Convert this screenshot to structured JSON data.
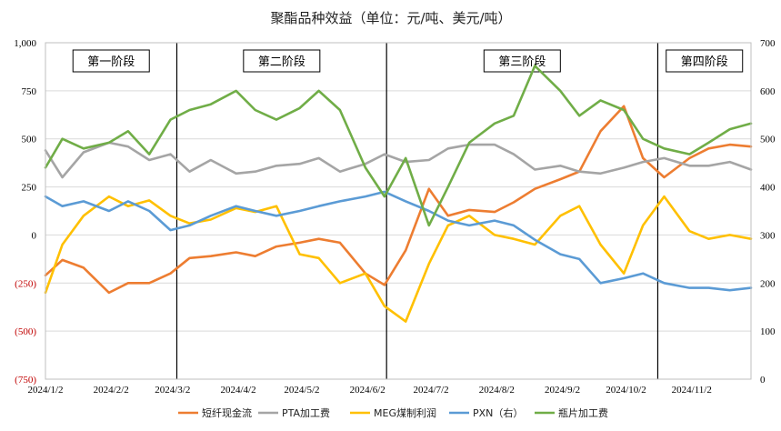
{
  "chart_data": {
    "type": "line",
    "title": "聚酯品种效益（单位：元/吨、美元/吨）",
    "x_ticks": [
      "2024/1/2",
      "2024/2/2",
      "2024/3/2",
      "2024/4/2",
      "2024/5/2",
      "2024/6/2",
      "2024/7/2",
      "2024/8/2",
      "2024/9/2",
      "2024/10/2",
      "2024/11/2"
    ],
    "y_left": {
      "min": -750,
      "max": 1000,
      "ticks": [
        "1,000",
        "750",
        "500",
        "250",
        "0",
        "(250)",
        "(500)",
        "(750)"
      ],
      "tick_values": [
        1000,
        750,
        500,
        250,
        0,
        -250,
        -500,
        -750
      ]
    },
    "y_right": {
      "min": 0,
      "max": 700,
      "ticks": [
        "700",
        "600",
        "500",
        "400",
        "300",
        "200",
        "100",
        "0"
      ],
      "tick_values": [
        700,
        600,
        500,
        400,
        300,
        200,
        100,
        0
      ]
    },
    "stages": [
      {
        "label": "第一阶段",
        "start": "2024/1/2",
        "end": "2024/3/4"
      },
      {
        "label": "第二阶段",
        "start": "2024/3/4",
        "end": "2024/6/11"
      },
      {
        "label": "第三阶段",
        "start": "2024/6/11",
        "end": "2024/10/17"
      },
      {
        "label": "第四阶段",
        "start": "2024/10/17",
        "end": "2024/11/30"
      }
    ],
    "series": [
      {
        "name": "短纤现金流",
        "axis": "left",
        "color": "#ED7D31",
        "x": [
          "2024/1/2",
          "2024/1/10",
          "2024/1/20",
          "2024/2/1",
          "2024/2/10",
          "2024/2/20",
          "2024/3/1",
          "2024/3/10",
          "2024/3/20",
          "2024/4/1",
          "2024/4/10",
          "2024/4/20",
          "2024/5/1",
          "2024/5/10",
          "2024/5/20",
          "2024/6/1",
          "2024/6/10",
          "2024/6/20",
          "2024/7/1",
          "2024/7/10",
          "2024/7/20",
          "2024/8/1",
          "2024/8/10",
          "2024/8/20",
          "2024/9/1",
          "2024/9/10",
          "2024/9/20",
          "2024/10/1",
          "2024/10/10",
          "2024/10/20",
          "2024/11/1",
          "2024/11/10",
          "2024/11/20",
          "2024/11/30"
        ],
        "values": [
          -210,
          -130,
          -170,
          -300,
          -250,
          -250,
          -200,
          -120,
          -110,
          -90,
          -110,
          -60,
          -40,
          -20,
          -40,
          -200,
          -260,
          -80,
          240,
          100,
          130,
          120,
          170,
          240,
          290,
          330,
          540,
          670,
          400,
          300,
          400,
          450,
          470,
          460
        ]
      },
      {
        "name": "PTA加工费",
        "axis": "left",
        "color": "#A5A5A5",
        "x": [
          "2024/1/2",
          "2024/1/10",
          "2024/1/20",
          "2024/2/1",
          "2024/2/10",
          "2024/2/20",
          "2024/3/1",
          "2024/3/10",
          "2024/3/20",
          "2024/4/1",
          "2024/4/10",
          "2024/4/20",
          "2024/5/1",
          "2024/5/10",
          "2024/5/20",
          "2024/6/1",
          "2024/6/10",
          "2024/6/20",
          "2024/7/1",
          "2024/7/10",
          "2024/7/20",
          "2024/8/1",
          "2024/8/10",
          "2024/8/20",
          "2024/9/1",
          "2024/9/10",
          "2024/9/20",
          "2024/10/1",
          "2024/10/10",
          "2024/10/20",
          "2024/11/1",
          "2024/11/10",
          "2024/11/20",
          "2024/11/30"
        ],
        "values": [
          440,
          300,
          430,
          480,
          460,
          390,
          420,
          330,
          390,
          320,
          330,
          360,
          370,
          400,
          330,
          370,
          420,
          380,
          390,
          450,
          470,
          470,
          420,
          340,
          360,
          330,
          320,
          350,
          380,
          400,
          360,
          360,
          380,
          340
        ]
      },
      {
        "name": "MEG煤制利润",
        "axis": "left",
        "color": "#FFC000",
        "x": [
          "2024/1/2",
          "2024/1/10",
          "2024/1/20",
          "2024/2/1",
          "2024/2/10",
          "2024/2/20",
          "2024/3/1",
          "2024/3/10",
          "2024/3/20",
          "2024/4/1",
          "2024/4/10",
          "2024/4/20",
          "2024/5/1",
          "2024/5/10",
          "2024/5/20",
          "2024/6/1",
          "2024/6/10",
          "2024/6/20",
          "2024/7/1",
          "2024/7/10",
          "2024/7/20",
          "2024/8/1",
          "2024/8/10",
          "2024/8/20",
          "2024/9/1",
          "2024/9/10",
          "2024/9/20",
          "2024/10/1",
          "2024/10/10",
          "2024/10/20",
          "2024/11/1",
          "2024/11/10",
          "2024/11/20",
          "2024/11/30"
        ],
        "values": [
          -300,
          -50,
          100,
          200,
          150,
          180,
          100,
          60,
          80,
          140,
          120,
          150,
          -100,
          -120,
          -250,
          -200,
          -370,
          -450,
          -150,
          50,
          100,
          0,
          -20,
          -50,
          100,
          150,
          -50,
          -200,
          50,
          200,
          20,
          -20,
          0,
          -20
        ]
      },
      {
        "name": "PXN（右）",
        "axis": "right",
        "color": "#5B9BD5",
        "x": [
          "2024/1/2",
          "2024/1/10",
          "2024/1/20",
          "2024/2/1",
          "2024/2/10",
          "2024/2/20",
          "2024/3/1",
          "2024/3/10",
          "2024/3/20",
          "2024/4/1",
          "2024/4/10",
          "2024/4/20",
          "2024/5/1",
          "2024/5/10",
          "2024/5/20",
          "2024/6/1",
          "2024/6/10",
          "2024/6/20",
          "2024/7/1",
          "2024/7/10",
          "2024/7/20",
          "2024/8/1",
          "2024/8/10",
          "2024/8/20",
          "2024/9/1",
          "2024/9/10",
          "2024/9/20",
          "2024/10/1",
          "2024/10/10",
          "2024/10/20",
          "2024/11/1",
          "2024/11/10",
          "2024/11/20",
          "2024/11/30"
        ],
        "values": [
          380,
          360,
          370,
          350,
          370,
          350,
          310,
          320,
          340,
          360,
          350,
          340,
          350,
          360,
          370,
          380,
          390,
          370,
          350,
          330,
          320,
          330,
          320,
          290,
          260,
          250,
          200,
          210,
          220,
          200,
          190,
          190,
          185,
          190
        ]
      },
      {
        "name": "瓶片加工费",
        "axis": "left",
        "color": "#70AD47",
        "x": [
          "2024/1/2",
          "2024/1/10",
          "2024/1/20",
          "2024/2/1",
          "2024/2/10",
          "2024/2/20",
          "2024/3/1",
          "2024/3/10",
          "2024/3/20",
          "2024/4/1",
          "2024/4/10",
          "2024/4/20",
          "2024/5/1",
          "2024/5/10",
          "2024/5/20",
          "2024/6/1",
          "2024/6/10",
          "2024/6/20",
          "2024/7/1",
          "2024/7/10",
          "2024/7/20",
          "2024/8/1",
          "2024/8/10",
          "2024/8/20",
          "2024/9/1",
          "2024/9/10",
          "2024/9/20",
          "2024/10/1",
          "2024/10/10",
          "2024/10/20",
          "2024/11/1",
          "2024/11/10",
          "2024/11/20",
          "2024/11/30"
        ],
        "values": [
          350,
          500,
          450,
          480,
          540,
          420,
          600,
          650,
          680,
          750,
          650,
          600,
          660,
          750,
          650,
          350,
          200,
          400,
          50,
          250,
          480,
          580,
          620,
          880,
          750,
          620,
          700,
          650,
          500,
          450,
          420,
          480,
          550,
          580
        ]
      }
    ],
    "legend_position": "bottom",
    "grid": true
  }
}
